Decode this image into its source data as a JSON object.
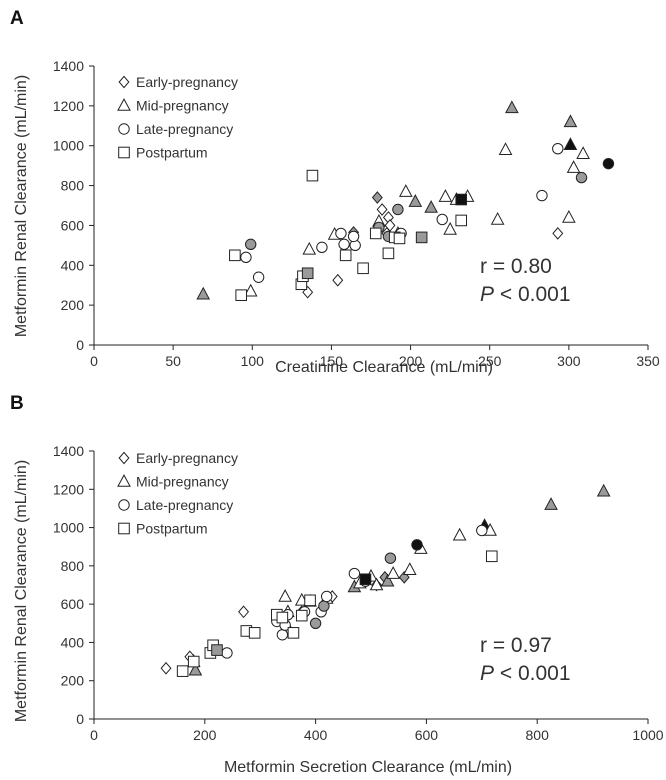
{
  "colors": {
    "open_fill": "#ffffff",
    "gray_fill": "#9a9a9a",
    "black_fill": "#111111",
    "stroke": "#222222"
  },
  "legend": [
    {
      "label": "Early-pregnancy",
      "marker": "diamond"
    },
    {
      "label": "Mid-pregnancy",
      "marker": "triangle"
    },
    {
      "label": "Late-pregnancy",
      "marker": "circle"
    },
    {
      "label": "Postpartum",
      "marker": "square"
    }
  ],
  "chart_data": [
    {
      "panel": "A",
      "type": "scatter",
      "title": "",
      "xlabel": "Creatinine Clearance (mL/min)",
      "ylabel": "Metformin Renal Clearance (mL/min)",
      "xlim": [
        0,
        350
      ],
      "ylim": [
        0,
        1400
      ],
      "xticks": [
        0,
        50,
        100,
        150,
        200,
        250,
        300,
        350
      ],
      "yticks": [
        0,
        200,
        400,
        600,
        800,
        1000,
        1200,
        1400
      ],
      "annotation": {
        "r": "r = 0.80",
        "p_symbol": "P",
        "p_rest": " < 0.001"
      },
      "series": [
        {
          "name": "Early-pregnancy",
          "marker": "diamond",
          "points": [
            {
              "x": 135,
              "y": 265,
              "fill": "open"
            },
            {
              "x": 154,
              "y": 325,
              "fill": "open"
            },
            {
              "x": 164,
              "y": 565,
              "fill": "gray"
            },
            {
              "x": 179,
              "y": 740,
              "fill": "gray"
            },
            {
              "x": 182,
              "y": 680,
              "fill": "open"
            },
            {
              "x": 186,
              "y": 640,
              "fill": "open"
            },
            {
              "x": 187,
              "y": 600,
              "fill": "open"
            },
            {
              "x": 185,
              "y": 560,
              "fill": "open"
            },
            {
              "x": 293,
              "y": 560,
              "fill": "open"
            }
          ]
        },
        {
          "name": "Mid-pregnancy",
          "marker": "triangle",
          "points": [
            {
              "x": 69,
              "y": 255,
              "fill": "gray"
            },
            {
              "x": 99,
              "y": 270,
              "fill": "open"
            },
            {
              "x": 136,
              "y": 480,
              "fill": "open"
            },
            {
              "x": 152,
              "y": 555,
              "fill": "open"
            },
            {
              "x": 180,
              "y": 620,
              "fill": "open"
            },
            {
              "x": 192,
              "y": 560,
              "fill": "open"
            },
            {
              "x": 197,
              "y": 770,
              "fill": "open"
            },
            {
              "x": 203,
              "y": 720,
              "fill": "gray"
            },
            {
              "x": 213,
              "y": 690,
              "fill": "gray"
            },
            {
              "x": 222,
              "y": 745,
              "fill": "open"
            },
            {
              "x": 225,
              "y": 580,
              "fill": "open"
            },
            {
              "x": 229,
              "y": 730,
              "fill": "open"
            },
            {
              "x": 236,
              "y": 745,
              "fill": "open"
            },
            {
              "x": 255,
              "y": 630,
              "fill": "open"
            },
            {
              "x": 260,
              "y": 980,
              "fill": "open"
            },
            {
              "x": 264,
              "y": 1190,
              "fill": "gray"
            },
            {
              "x": 300,
              "y": 640,
              "fill": "open"
            },
            {
              "x": 301,
              "y": 1120,
              "fill": "gray"
            },
            {
              "x": 301,
              "y": 1005,
              "fill": "black"
            },
            {
              "x": 303,
              "y": 890,
              "fill": "open"
            },
            {
              "x": 309,
              "y": 960,
              "fill": "open"
            }
          ]
        },
        {
          "name": "Late-pregnancy",
          "marker": "circle",
          "points": [
            {
              "x": 96,
              "y": 440,
              "fill": "open"
            },
            {
              "x": 99,
              "y": 505,
              "fill": "gray"
            },
            {
              "x": 104,
              "y": 340,
              "fill": "open"
            },
            {
              "x": 144,
              "y": 490,
              "fill": "open"
            },
            {
              "x": 156,
              "y": 560,
              "fill": "open"
            },
            {
              "x": 158,
              "y": 505,
              "fill": "open"
            },
            {
              "x": 165,
              "y": 500,
              "fill": "open"
            },
            {
              "x": 164,
              "y": 545,
              "fill": "open"
            },
            {
              "x": 180,
              "y": 590,
              "fill": "gray"
            },
            {
              "x": 186,
              "y": 545,
              "fill": "gray"
            },
            {
              "x": 192,
              "y": 680,
              "fill": "gray"
            },
            {
              "x": 194,
              "y": 560,
              "fill": "open"
            },
            {
              "x": 220,
              "y": 630,
              "fill": "open"
            },
            {
              "x": 283,
              "y": 750,
              "fill": "open"
            },
            {
              "x": 293,
              "y": 985,
              "fill": "open"
            },
            {
              "x": 308,
              "y": 840,
              "fill": "gray"
            },
            {
              "x": 325,
              "y": 910,
              "fill": "black"
            }
          ]
        },
        {
          "name": "Postpartum",
          "marker": "square",
          "points": [
            {
              "x": 89,
              "y": 450,
              "fill": "open"
            },
            {
              "x": 93,
              "y": 250,
              "fill": "open"
            },
            {
              "x": 131,
              "y": 305,
              "fill": "open"
            },
            {
              "x": 132,
              "y": 345,
              "fill": "open"
            },
            {
              "x": 135,
              "y": 360,
              "fill": "gray"
            },
            {
              "x": 138,
              "y": 850,
              "fill": "open"
            },
            {
              "x": 159,
              "y": 450,
              "fill": "open"
            },
            {
              "x": 170,
              "y": 385,
              "fill": "open"
            },
            {
              "x": 178,
              "y": 560,
              "fill": "open"
            },
            {
              "x": 186,
              "y": 460,
              "fill": "open"
            },
            {
              "x": 190,
              "y": 540,
              "fill": "open"
            },
            {
              "x": 193,
              "y": 535,
              "fill": "open"
            },
            {
              "x": 207,
              "y": 540,
              "fill": "gray"
            },
            {
              "x": 232,
              "y": 625,
              "fill": "open"
            },
            {
              "x": 232,
              "y": 730,
              "fill": "black"
            }
          ]
        }
      ]
    },
    {
      "panel": "B",
      "type": "scatter",
      "title": "",
      "xlabel": "Metformin Secretion Clearance (mL/min)",
      "ylabel": "Metformin Renal Clearance (mL/min)",
      "xlim": [
        0,
        1000
      ],
      "ylim": [
        0,
        1400
      ],
      "xticks": [
        0,
        200,
        400,
        600,
        800,
        1000
      ],
      "yticks": [
        0,
        200,
        400,
        600,
        800,
        1000,
        1200,
        1400
      ],
      "annotation": {
        "r": "r = 0.97",
        "p_symbol": "P",
        "p_rest": " < 0.001"
      },
      "series": [
        {
          "name": "Early-pregnancy",
          "marker": "diamond",
          "points": [
            {
              "x": 130,
              "y": 265,
              "fill": "open"
            },
            {
              "x": 173,
              "y": 325,
              "fill": "open"
            },
            {
              "x": 270,
              "y": 560,
              "fill": "open"
            },
            {
              "x": 350,
              "y": 470,
              "fill": "open"
            },
            {
              "x": 375,
              "y": 560,
              "fill": "open"
            },
            {
              "x": 430,
              "y": 640,
              "fill": "open"
            },
            {
              "x": 510,
              "y": 700,
              "fill": "open"
            },
            {
              "x": 525,
              "y": 740,
              "fill": "gray"
            },
            {
              "x": 560,
              "y": 740,
              "fill": "gray"
            }
          ]
        },
        {
          "name": "Mid-pregnancy",
          "marker": "triangle",
          "points": [
            {
              "x": 183,
              "y": 255,
              "fill": "gray"
            },
            {
              "x": 180,
              "y": 300,
              "fill": "open"
            },
            {
              "x": 345,
              "y": 640,
              "fill": "open"
            },
            {
              "x": 350,
              "y": 560,
              "fill": "open"
            },
            {
              "x": 375,
              "y": 620,
              "fill": "open"
            },
            {
              "x": 390,
              "y": 615,
              "fill": "open"
            },
            {
              "x": 420,
              "y": 630,
              "fill": "open"
            },
            {
              "x": 470,
              "y": 690,
              "fill": "gray"
            },
            {
              "x": 480,
              "y": 710,
              "fill": "open"
            },
            {
              "x": 500,
              "y": 745,
              "fill": "open"
            },
            {
              "x": 510,
              "y": 700,
              "fill": "open"
            },
            {
              "x": 530,
              "y": 720,
              "fill": "gray"
            },
            {
              "x": 540,
              "y": 760,
              "fill": "open"
            },
            {
              "x": 570,
              "y": 780,
              "fill": "open"
            },
            {
              "x": 590,
              "y": 890,
              "fill": "open"
            },
            {
              "x": 660,
              "y": 960,
              "fill": "open"
            },
            {
              "x": 705,
              "y": 1010,
              "fill": "black"
            },
            {
              "x": 715,
              "y": 985,
              "fill": "open"
            },
            {
              "x": 825,
              "y": 1120,
              "fill": "gray"
            },
            {
              "x": 920,
              "y": 1190,
              "fill": "gray"
            }
          ]
        },
        {
          "name": "Late-pregnancy",
          "marker": "circle",
          "points": [
            {
              "x": 240,
              "y": 345,
              "fill": "open"
            },
            {
              "x": 330,
              "y": 510,
              "fill": "open"
            },
            {
              "x": 340,
              "y": 440,
              "fill": "open"
            },
            {
              "x": 345,
              "y": 490,
              "fill": "open"
            },
            {
              "x": 350,
              "y": 545,
              "fill": "open"
            },
            {
              "x": 380,
              "y": 560,
              "fill": "open"
            },
            {
              "x": 400,
              "y": 500,
              "fill": "gray"
            },
            {
              "x": 410,
              "y": 560,
              "fill": "open"
            },
            {
              "x": 415,
              "y": 590,
              "fill": "gray"
            },
            {
              "x": 420,
              "y": 640,
              "fill": "open"
            },
            {
              "x": 470,
              "y": 760,
              "fill": "open"
            },
            {
              "x": 490,
              "y": 720,
              "fill": "open"
            },
            {
              "x": 535,
              "y": 840,
              "fill": "gray"
            },
            {
              "x": 583,
              "y": 910,
              "fill": "black"
            },
            {
              "x": 700,
              "y": 985,
              "fill": "open"
            }
          ]
        },
        {
          "name": "Postpartum",
          "marker": "square",
          "points": [
            {
              "x": 160,
              "y": 250,
              "fill": "open"
            },
            {
              "x": 180,
              "y": 300,
              "fill": "open"
            },
            {
              "x": 210,
              "y": 345,
              "fill": "open"
            },
            {
              "x": 215,
              "y": 385,
              "fill": "open"
            },
            {
              "x": 222,
              "y": 360,
              "fill": "gray"
            },
            {
              "x": 275,
              "y": 460,
              "fill": "open"
            },
            {
              "x": 290,
              "y": 450,
              "fill": "open"
            },
            {
              "x": 330,
              "y": 545,
              "fill": "open"
            },
            {
              "x": 340,
              "y": 530,
              "fill": "open"
            },
            {
              "x": 360,
              "y": 450,
              "fill": "open"
            },
            {
              "x": 375,
              "y": 540,
              "fill": "open"
            },
            {
              "x": 390,
              "y": 620,
              "fill": "open"
            },
            {
              "x": 490,
              "y": 730,
              "fill": "black"
            },
            {
              "x": 718,
              "y": 850,
              "fill": "open"
            }
          ]
        }
      ]
    }
  ]
}
